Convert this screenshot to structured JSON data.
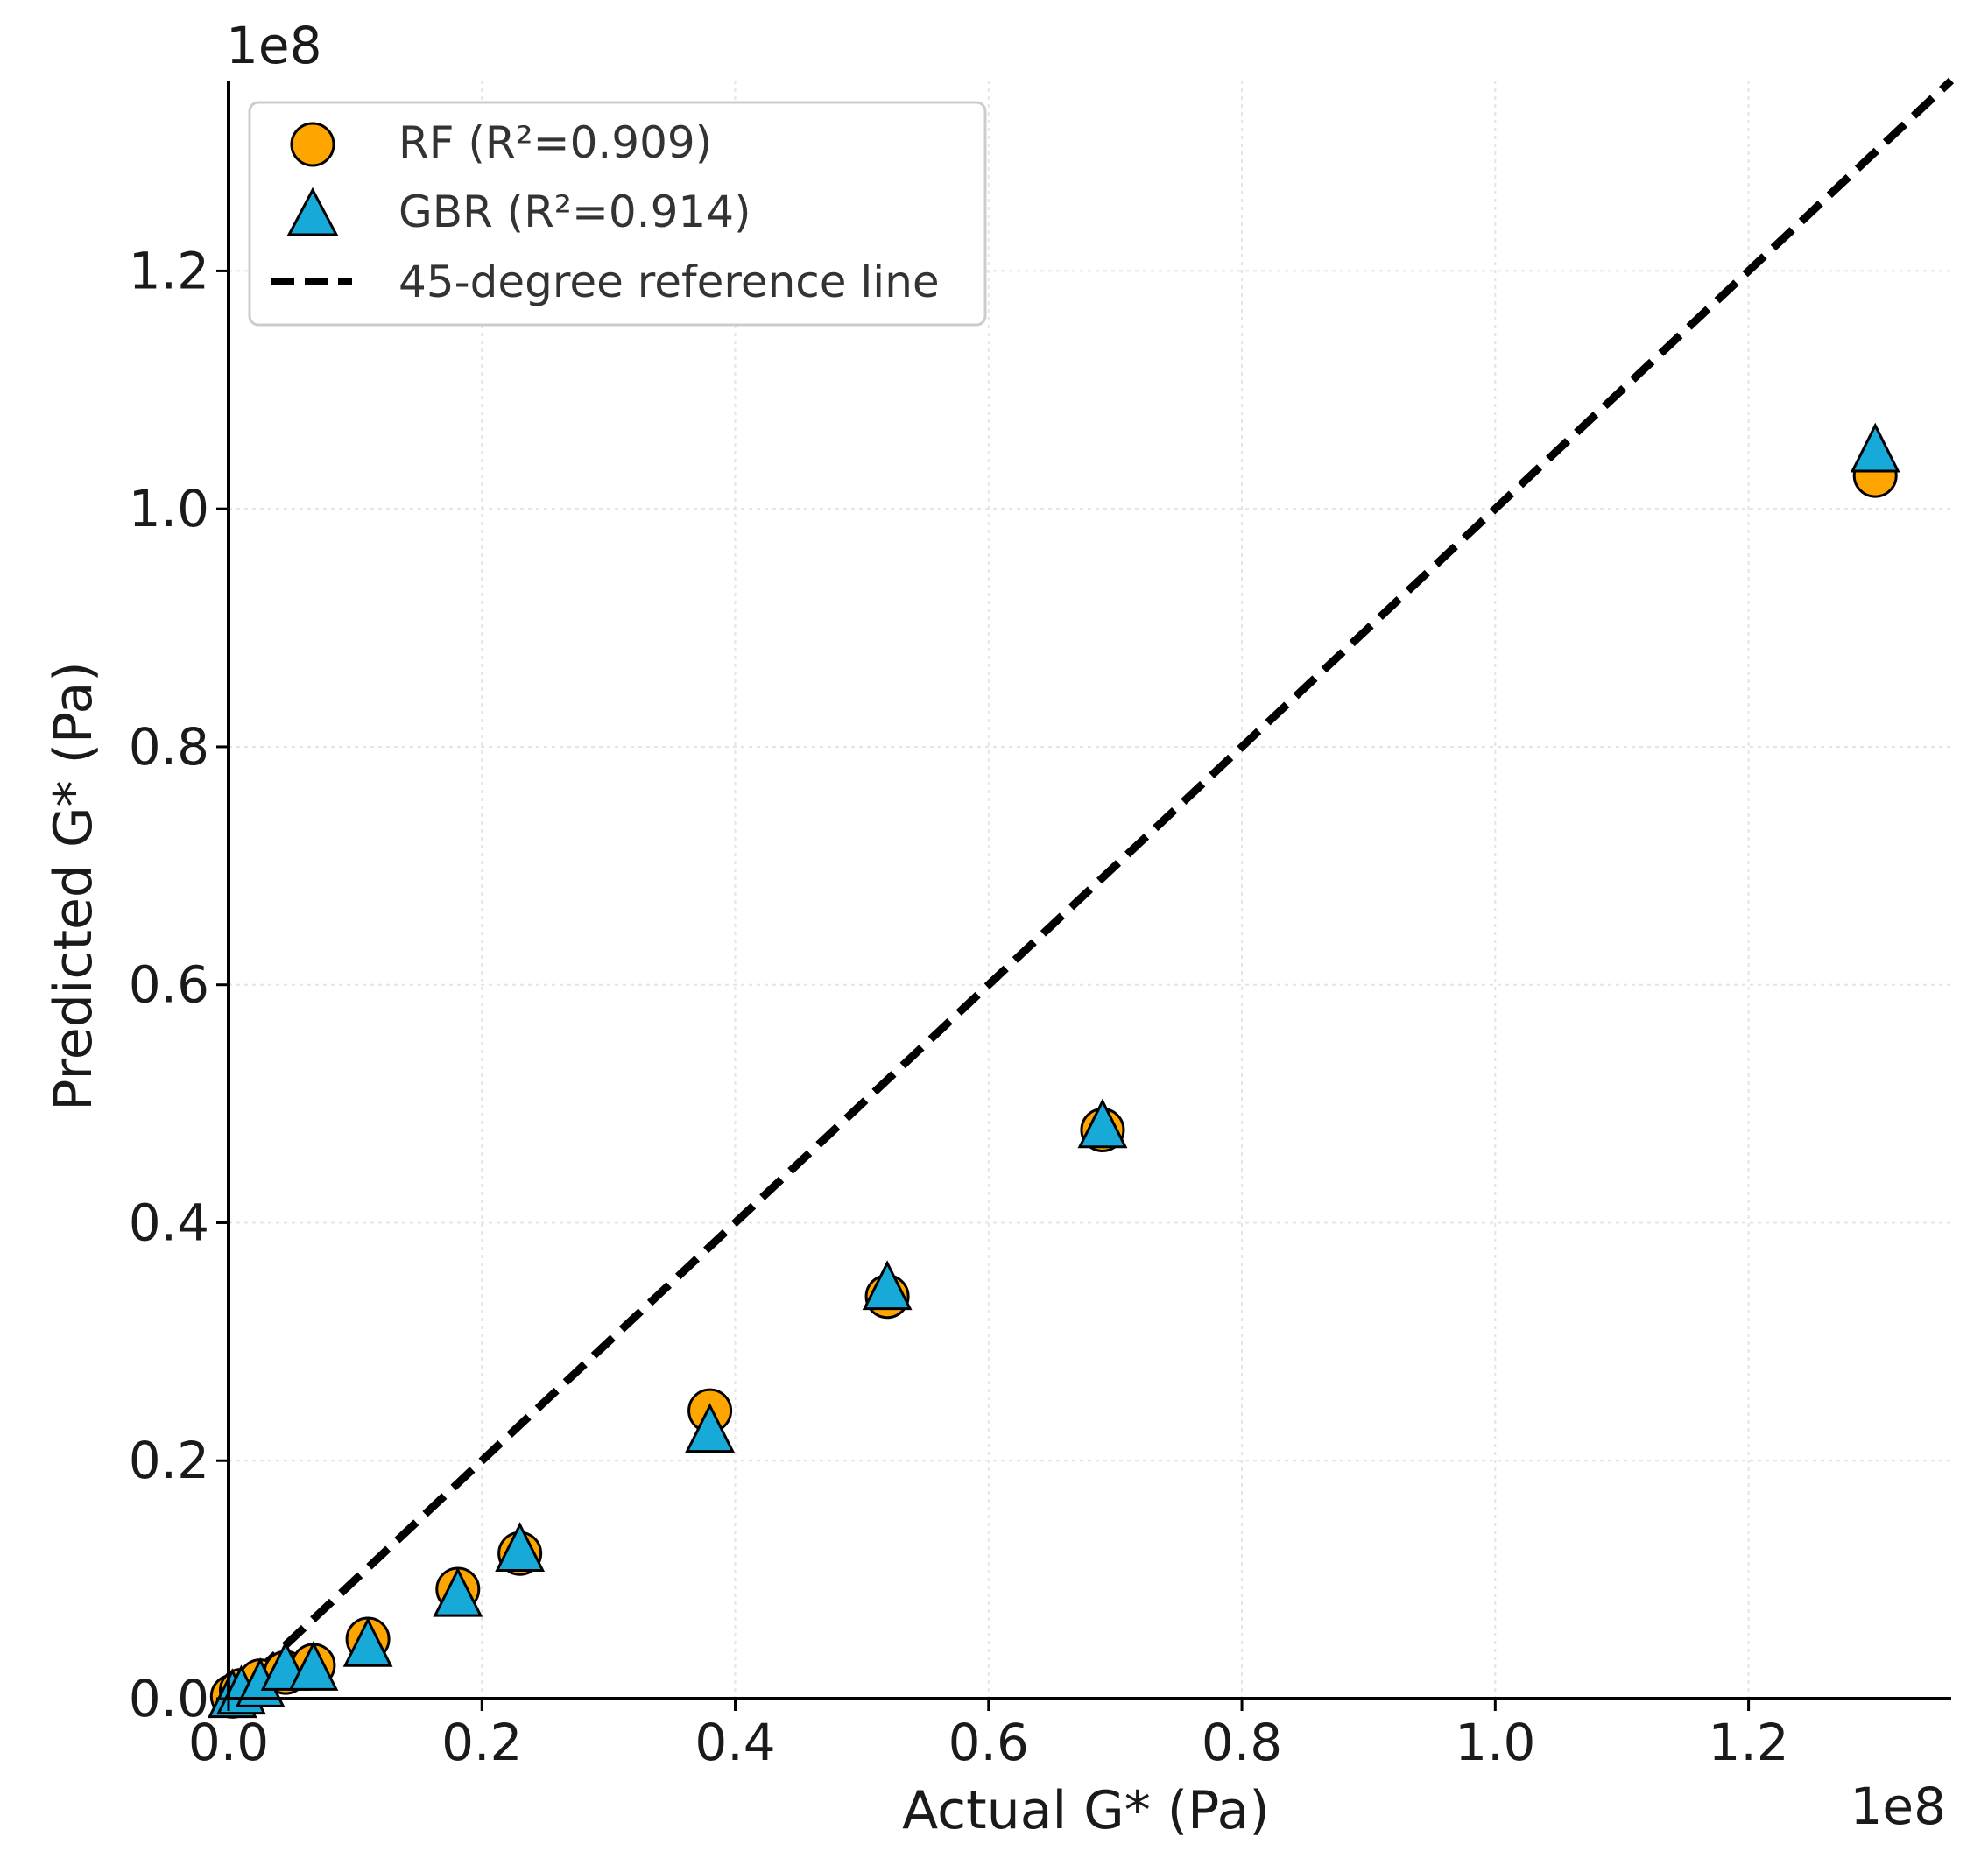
{
  "chart_data": {
    "type": "scatter",
    "title": "",
    "xlabel": "Actual G* (Pa)",
    "ylabel": "Predicted G* (Pa)",
    "x_offset_label": "1e8",
    "y_offset_label": "1e8",
    "xlim": [
      0,
      1.36
    ],
    "ylim": [
      0,
      1.36
    ],
    "xticks": [
      0.0,
      0.2,
      0.4,
      0.6,
      0.8,
      1.0,
      1.2
    ],
    "yticks": [
      0.0,
      0.2,
      0.4,
      0.6,
      0.8,
      1.0,
      1.2
    ],
    "xtick_labels": [
      "0.0",
      "0.2",
      "0.4",
      "0.6",
      "0.8",
      "1.0",
      "1.2"
    ],
    "ytick_labels": [
      "0.0",
      "0.2",
      "0.4",
      "0.6",
      "0.8",
      "1.0",
      "1.2"
    ],
    "grid": true,
    "legend_position": "top-left",
    "series": [
      {
        "name": "RF (R²=0.909)",
        "marker": "circle",
        "color": "#FFA500",
        "x": [
          0.003,
          0.01,
          0.025,
          0.045,
          0.067,
          0.11,
          0.181,
          0.23,
          0.38,
          0.52,
          0.69,
          1.3
        ],
        "y": [
          0.002,
          0.007,
          0.015,
          0.022,
          0.028,
          0.05,
          0.092,
          0.122,
          0.242,
          0.338,
          0.478,
          1.028
        ]
      },
      {
        "name": "GBR (R²=0.914)",
        "marker": "triangle",
        "color": "#17A9D8",
        "x": [
          0.003,
          0.01,
          0.025,
          0.045,
          0.067,
          0.11,
          0.181,
          0.23,
          0.38,
          0.52,
          0.69,
          1.3
        ],
        "y": [
          0.001,
          0.004,
          0.01,
          0.024,
          0.024,
          0.044,
          0.086,
          0.124,
          0.224,
          0.344,
          0.48,
          1.048
        ]
      }
    ],
    "reference_line": {
      "name": "45-degree reference line",
      "style": "dashed",
      "color": "#000000",
      "from": [
        0,
        0
      ],
      "to": [
        1.36,
        1.36
      ]
    }
  }
}
